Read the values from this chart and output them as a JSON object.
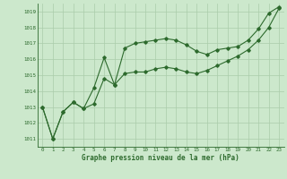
{
  "line1_x": [
    0,
    1,
    2,
    3,
    4,
    5,
    6,
    7,
    8,
    9,
    10,
    11,
    12,
    13,
    14,
    15,
    16,
    17,
    18,
    19,
    20,
    21,
    22,
    23
  ],
  "line1_y": [
    1013.0,
    1011.0,
    1012.7,
    1013.3,
    1012.9,
    1013.2,
    1014.8,
    1014.4,
    1015.1,
    1015.2,
    1015.2,
    1015.4,
    1015.5,
    1015.4,
    1015.2,
    1015.1,
    1015.3,
    1015.6,
    1015.9,
    1016.2,
    1016.6,
    1017.2,
    1018.0,
    1019.2
  ],
  "line2_x": [
    0,
    1,
    2,
    3,
    4,
    5,
    6,
    7,
    8,
    9,
    10,
    11,
    12,
    13,
    14,
    15,
    16,
    17,
    18,
    19,
    20,
    21,
    22,
    23
  ],
  "line2_y": [
    1013.0,
    1011.0,
    1012.7,
    1013.3,
    1012.9,
    1014.2,
    1016.1,
    1014.4,
    1016.7,
    1017.0,
    1017.1,
    1017.2,
    1017.3,
    1017.2,
    1016.9,
    1016.5,
    1016.3,
    1016.6,
    1016.7,
    1016.8,
    1017.2,
    1017.9,
    1018.9,
    1019.3
  ],
  "line_color": "#2d6a2d",
  "bg_color": "#cce8cc",
  "grid_color": "#aaccaa",
  "xlabel": "Graphe pression niveau de la mer (hPa)",
  "ylim": [
    1010.5,
    1019.5
  ],
  "xlim": [
    -0.5,
    23.5
  ],
  "yticks": [
    1011,
    1012,
    1013,
    1014,
    1015,
    1016,
    1017,
    1018,
    1019
  ],
  "xticks": [
    0,
    1,
    2,
    3,
    4,
    5,
    6,
    7,
    8,
    9,
    10,
    11,
    12,
    13,
    14,
    15,
    16,
    17,
    18,
    19,
    20,
    21,
    22,
    23
  ]
}
